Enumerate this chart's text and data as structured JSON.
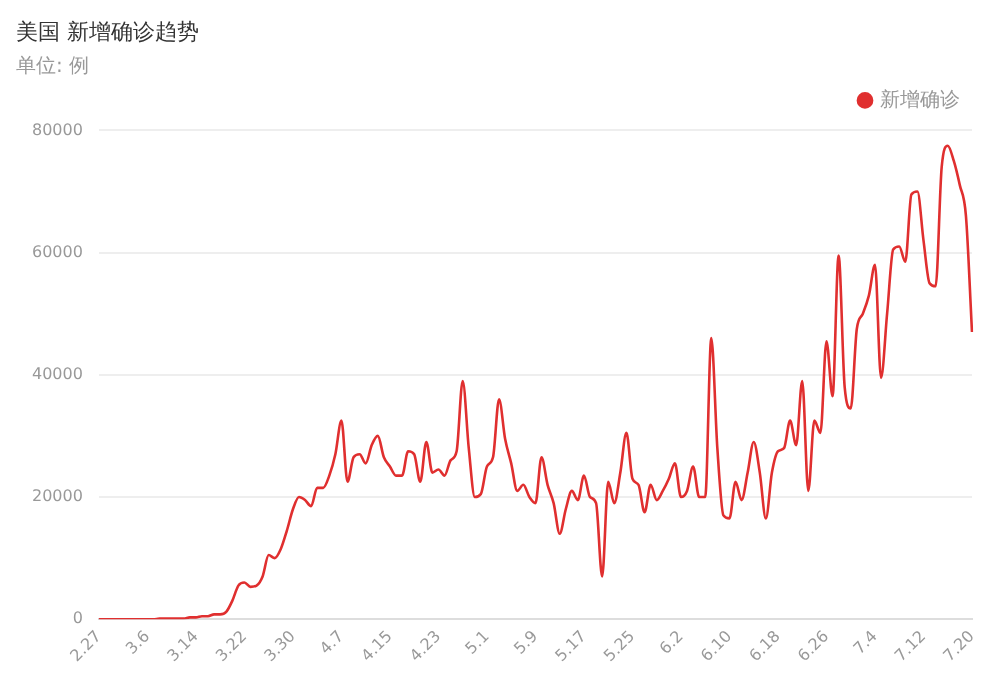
{
  "chart_data": {
    "type": "line",
    "title": "美国 新增确诊趋势",
    "subtitle": "单位: 例",
    "categories": [
      "2.27",
      null,
      null,
      null,
      null,
      null,
      null,
      null,
      "3.6",
      null,
      null,
      null,
      null,
      null,
      null,
      null,
      "3.14",
      null,
      null,
      null,
      null,
      null,
      null,
      null,
      "3.22",
      null,
      null,
      null,
      null,
      null,
      null,
      null,
      "3.30",
      null,
      null,
      null,
      null,
      null,
      null,
      null,
      "4.7",
      null,
      null,
      null,
      null,
      null,
      null,
      null,
      "4.15",
      null,
      null,
      null,
      null,
      null,
      null,
      null,
      "4.23",
      null,
      null,
      null,
      null,
      null,
      null,
      null,
      "5.1",
      null,
      null,
      null,
      null,
      null,
      null,
      null,
      "5.9",
      null,
      null,
      null,
      null,
      null,
      null,
      null,
      "5.17",
      null,
      null,
      null,
      null,
      null,
      null,
      null,
      "5.25",
      null,
      null,
      null,
      null,
      null,
      null,
      null,
      "6.2",
      null,
      null,
      null,
      null,
      null,
      null,
      null,
      "6.10",
      null,
      null,
      null,
      null,
      null,
      null,
      null,
      "6.18",
      null,
      null,
      null,
      null,
      null,
      null,
      null,
      "6.26",
      null,
      null,
      null,
      null,
      null,
      null,
      null,
      "7.4",
      null,
      null,
      null,
      null,
      null,
      null,
      null,
      "7.12",
      null,
      null,
      null,
      null,
      null,
      null,
      null,
      "7.20"
    ],
    "series": [
      {
        "name": "新增确诊",
        "color": "#e02f2f",
        "values": [
          0,
          0,
          0,
          0,
          0,
          0,
          0,
          0,
          0,
          0,
          100,
          100,
          100,
          100,
          100,
          300,
          300,
          500,
          500,
          800,
          800,
          1200,
          3000,
          5500,
          6000,
          5300,
          5500,
          7000,
          10500,
          10000,
          11500,
          14500,
          18000,
          20000,
          19500,
          18500,
          21500,
          21500,
          23500,
          27000,
          32500,
          22500,
          26500,
          27000,
          25500,
          28500,
          30000,
          26500,
          25000,
          23500,
          23500,
          27500,
          27000,
          22500,
          29000,
          24000,
          24500,
          23500,
          26000,
          27500,
          39000,
          28000,
          20000,
          20500,
          25000,
          26500,
          36000,
          29500,
          25500,
          21000,
          22000,
          20000,
          19000,
          26500,
          22000,
          19000,
          14000,
          18000,
          21000,
          19500,
          23500,
          20000,
          19000,
          7000,
          22500,
          19000,
          24000,
          30500,
          23000,
          22000,
          17500,
          22000,
          19500,
          21000,
          23000,
          25500,
          20000,
          21000,
          25000,
          20000,
          20000,
          46000,
          28000,
          17000,
          16500,
          22500,
          19500,
          24000,
          29000,
          24000,
          16500,
          24000,
          27500,
          28000,
          32500,
          28500,
          39000,
          21000,
          32500,
          30500,
          45500,
          36500,
          59500,
          38000,
          34500,
          47500,
          50000,
          53000,
          58000,
          39500,
          50000,
          60500,
          61000,
          58500,
          69500,
          70000,
          62000,
          55000,
          54500,
          74000,
          77500,
          75000,
          71000,
          66000,
          47000
        ]
      }
    ],
    "ylim": [
      0,
      80000
    ],
    "yticks": [
      0,
      20000,
      40000,
      60000,
      80000
    ],
    "grid": "y",
    "legend": "top right"
  }
}
